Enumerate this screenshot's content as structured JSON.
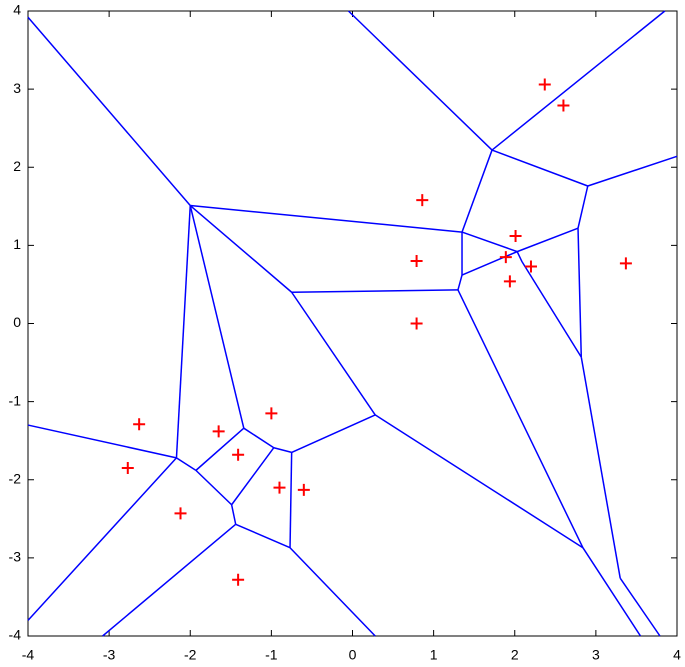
{
  "chart_data": {
    "type": "voronoi",
    "xlim": [
      -4,
      4
    ],
    "ylim": [
      -4,
      4
    ],
    "xticks": [
      -4,
      -3,
      -2,
      -1,
      0,
      1,
      2,
      3,
      4
    ],
    "yticks": [
      -4,
      -3,
      -2,
      -1,
      0,
      1,
      2,
      3,
      4
    ],
    "points": {
      "color": "#ff0000",
      "x": [
        2.37,
        2.6,
        0.86,
        2.01,
        0.79,
        1.89,
        2.2,
        1.94,
        3.37,
        0.79,
        -2.63,
        -2.77,
        -1.65,
        -1.0,
        -1.41,
        -0.9,
        -0.6,
        -2.12,
        -1.41
      ],
      "y": [
        3.06,
        2.79,
        1.58,
        1.12,
        0.8,
        0.85,
        0.73,
        0.54,
        0.77,
        0.0,
        -1.29,
        -1.85,
        -1.38,
        -1.15,
        -1.68,
        -2.1,
        -2.13,
        -2.43,
        -3.28
      ]
    },
    "edges": {
      "color": "#0000ff",
      "segments": [
        [
          -4.0,
          3.92,
          -2.0,
          1.51
        ],
        [
          -2.0,
          1.51,
          1.35,
          1.17
        ],
        [
          -2.0,
          1.51,
          -0.75,
          0.4
        ],
        [
          -2.0,
          1.51,
          -2.17,
          -1.72
        ],
        [
          -2.0,
          1.51,
          -1.34,
          -1.34
        ],
        [
          -0.05,
          4.0,
          1.72,
          2.22
        ],
        [
          1.72,
          2.22,
          3.85,
          4.0
        ],
        [
          1.72,
          2.22,
          1.35,
          1.17
        ],
        [
          1.72,
          2.22,
          2.9,
          1.76
        ],
        [
          2.9,
          1.76,
          4.0,
          2.14
        ],
        [
          2.9,
          1.76,
          2.78,
          1.22
        ],
        [
          2.78,
          1.22,
          2.03,
          0.92
        ],
        [
          2.78,
          1.22,
          2.82,
          -0.43
        ],
        [
          1.35,
          1.17,
          1.35,
          0.62
        ],
        [
          1.35,
          1.17,
          2.03,
          0.92
        ],
        [
          1.35,
          0.62,
          2.03,
          0.92
        ],
        [
          2.03,
          0.92,
          2.09,
          0.79
        ],
        [
          2.09,
          0.79,
          2.82,
          -0.43
        ],
        [
          1.35,
          0.62,
          1.3,
          0.43
        ],
        [
          1.3,
          0.43,
          -0.75,
          0.4
        ],
        [
          1.3,
          0.43,
          2.84,
          -2.87
        ],
        [
          0.28,
          -1.17,
          2.84,
          -2.87
        ],
        [
          2.84,
          -2.87,
          3.55,
          -4.0
        ],
        [
          2.82,
          -0.43,
          3.3,
          -3.26
        ],
        [
          3.3,
          -3.26,
          3.79,
          -4.0
        ],
        [
          -0.75,
          0.4,
          0.28,
          -1.17
        ],
        [
          0.28,
          -1.17,
          -0.75,
          -1.65
        ],
        [
          -0.75,
          -1.65,
          -0.97,
          -1.59
        ],
        [
          -0.75,
          -1.65,
          -0.77,
          -2.87
        ],
        [
          -1.34,
          -1.34,
          -0.97,
          -1.59
        ],
        [
          -1.34,
          -1.34,
          -1.93,
          -1.88
        ],
        [
          -0.97,
          -1.59,
          -1.49,
          -2.32
        ],
        [
          -1.93,
          -1.88,
          -1.49,
          -2.32
        ],
        [
          -2.17,
          -1.72,
          -1.93,
          -1.88
        ],
        [
          -2.17,
          -1.72,
          -4.0,
          -1.3
        ],
        [
          -2.17,
          -1.72,
          -4.0,
          -3.8
        ],
        [
          -1.49,
          -2.32,
          -1.44,
          -2.57
        ],
        [
          -1.44,
          -2.57,
          -0.77,
          -2.87
        ],
        [
          -1.44,
          -2.57,
          -3.08,
          -4.0
        ],
        [
          -0.77,
          -2.87,
          0.28,
          -4.0
        ]
      ]
    }
  }
}
